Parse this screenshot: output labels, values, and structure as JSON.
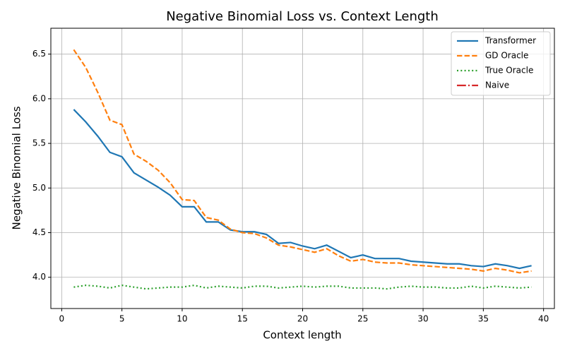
{
  "chart_data": {
    "type": "line",
    "title": "Negative Binomial Loss vs. Context Length",
    "xlabel": "Context length",
    "ylabel": "Negative Binomial Loss",
    "x": [
      1,
      2,
      3,
      4,
      5,
      6,
      7,
      8,
      9,
      10,
      11,
      12,
      13,
      14,
      15,
      16,
      17,
      18,
      19,
      20,
      21,
      22,
      23,
      24,
      25,
      26,
      27,
      28,
      29,
      30,
      31,
      32,
      33,
      34,
      35,
      36,
      37,
      38,
      39
    ],
    "series": [
      {
        "name": "Transformer",
        "color": "#1f77b4",
        "dash": "solid",
        "values": [
          5.88,
          5.74,
          5.58,
          5.4,
          5.35,
          5.17,
          5.09,
          5.01,
          4.92,
          4.79,
          4.79,
          4.62,
          4.62,
          4.53,
          4.51,
          4.51,
          4.48,
          4.38,
          4.39,
          4.35,
          4.32,
          4.36,
          4.29,
          4.22,
          4.25,
          4.21,
          4.21,
          4.21,
          4.18,
          4.17,
          4.16,
          4.15,
          4.15,
          4.13,
          4.12,
          4.15,
          4.13,
          4.1,
          4.13
        ]
      },
      {
        "name": "GD Oracle",
        "color": "#ff7f0e",
        "dash": "dashed",
        "values": [
          6.55,
          6.35,
          6.07,
          5.76,
          5.71,
          5.38,
          5.3,
          5.2,
          5.06,
          4.87,
          4.86,
          4.67,
          4.64,
          4.54,
          4.5,
          4.49,
          4.44,
          4.36,
          4.34,
          4.31,
          4.28,
          4.32,
          4.24,
          4.18,
          4.2,
          4.17,
          4.16,
          4.16,
          4.14,
          4.13,
          4.12,
          4.11,
          4.1,
          4.09,
          4.07,
          4.1,
          4.08,
          4.05,
          4.07
        ]
      },
      {
        "name": "True Oracle",
        "color": "#2ca02c",
        "dash": "dotted",
        "values": [
          3.89,
          3.91,
          3.9,
          3.88,
          3.91,
          3.89,
          3.87,
          3.88,
          3.89,
          3.89,
          3.91,
          3.88,
          3.9,
          3.89,
          3.88,
          3.9,
          3.9,
          3.88,
          3.89,
          3.9,
          3.89,
          3.9,
          3.9,
          3.88,
          3.88,
          3.88,
          3.87,
          3.89,
          3.9,
          3.89,
          3.89,
          3.88,
          3.88,
          3.9,
          3.88,
          3.9,
          3.89,
          3.88,
          3.89
        ]
      },
      {
        "name": "Naive",
        "color": "#d62728",
        "dash": "dashdot",
        "values": [
          null,
          null,
          null,
          null,
          null,
          null,
          null,
          null,
          null,
          null,
          null,
          null,
          null,
          null,
          null,
          null,
          null,
          null,
          null,
          null,
          null,
          null,
          null,
          null,
          null,
          null,
          null,
          null,
          null,
          null,
          null,
          null,
          null,
          null,
          null,
          null,
          null,
          null,
          null
        ]
      }
    ],
    "xlim": [
      -0.9,
      40.9
    ],
    "xticks": [
      0,
      5,
      10,
      15,
      20,
      25,
      30,
      35,
      40
    ],
    "ylim": [
      3.65,
      6.79
    ],
    "yticks": [
      {
        "value": 4,
        "label": "4.0"
      },
      4.5,
      {
        "value": 5,
        "label": "5.0"
      },
      5.5,
      {
        "value": 6,
        "label": "6.0"
      },
      6.5
    ],
    "grid": true,
    "legend": "upper right"
  }
}
